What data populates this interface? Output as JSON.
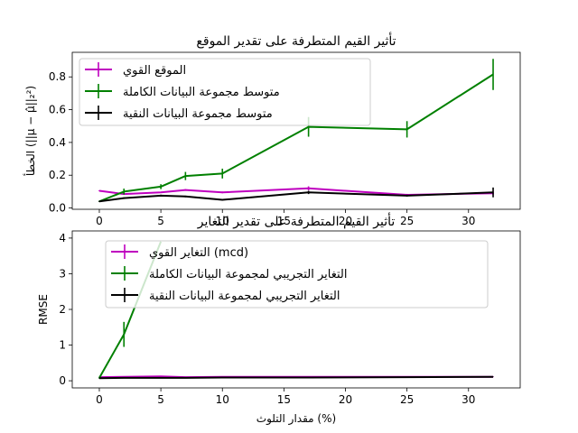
{
  "chart_data": [
    {
      "type": "line",
      "title": "تأثير القيم المتطرفة على تقدير الموقع",
      "xlabel": "",
      "ylabel": "الخطأ (||μ − μ̂||₂²)",
      "x": [
        0,
        2,
        5,
        7,
        10,
        17,
        25,
        32
      ],
      "xlim": [
        -2.2,
        34.2
      ],
      "ylim": [
        -0.008,
        0.95
      ],
      "xticks": [
        0,
        5,
        10,
        15,
        20,
        25,
        30
      ],
      "yticks": [
        0.0,
        0.2,
        0.4,
        0.6,
        0.8
      ],
      "ytick_decimals": 1,
      "grid": false,
      "legend_position": "top-left",
      "series": [
        {
          "name": "الموقع القوي",
          "color": "#bf00bf",
          "values": [
            0.105,
            0.085,
            0.095,
            0.11,
            0.095,
            0.12,
            0.08,
            0.09
          ],
          "errors": [
            0.003,
            0.004,
            0.004,
            0.005,
            0.005,
            0.012,
            0.006,
            0.008
          ]
        },
        {
          "name": "متوسط مجموعة البيانات الكاملة",
          "color": "#008000",
          "values": [
            0.04,
            0.1,
            0.13,
            0.195,
            0.21,
            0.495,
            0.48,
            0.815
          ],
          "errors": [
            0.004,
            0.018,
            0.015,
            0.025,
            0.03,
            0.06,
            0.05,
            0.095
          ]
        },
        {
          "name": "متوسط مجموعة البيانات النقية",
          "color": "#000000",
          "values": [
            0.04,
            0.06,
            0.075,
            0.07,
            0.05,
            0.095,
            0.075,
            0.095
          ],
          "errors": [
            0.003,
            0.005,
            0.006,
            0.005,
            0.004,
            0.01,
            0.006,
            0.03
          ]
        }
      ]
    },
    {
      "type": "line",
      "title": "تأثير القيم المتطرفة على تقدير التغاير",
      "xlabel": "مقدار التلوث (%)",
      "ylabel": "RMSE",
      "x": [
        0,
        2,
        5,
        7,
        10,
        17,
        25,
        32
      ],
      "xlim": [
        -2.2,
        34.2
      ],
      "ylim": [
        -0.2,
        4.2
      ],
      "xticks": [
        0,
        5,
        10,
        15,
        20,
        25,
        30
      ],
      "yticks": [
        0,
        1,
        2,
        3,
        4
      ],
      "ytick_decimals": 0,
      "grid": false,
      "legend_position": "top-left",
      "series": [
        {
          "name": "التغاير القوي (mcd)",
          "color": "#bf00bf",
          "values": [
            0.1,
            0.11,
            0.12,
            0.1,
            0.11,
            0.11,
            0.11,
            0.11
          ],
          "errors": [
            0.01,
            0.01,
            0.01,
            0.01,
            0.01,
            0.01,
            0.01,
            0.01
          ]
        },
        {
          "name": "التغاير التجريبي لمجموعة البيانات الكاملة",
          "color": "#008000",
          "values": [
            0.08,
            1.3,
            3.9,
            null,
            null,
            null,
            null,
            null
          ],
          "errors": [
            0.02,
            0.35,
            0,
            0,
            0,
            0,
            0,
            0
          ]
        },
        {
          "name": "التغاير التجريبي لمجموعة البيانات النقية",
          "color": "#000000",
          "values": [
            0.07,
            0.08,
            0.08,
            0.08,
            0.09,
            0.09,
            0.1,
            0.11
          ],
          "errors": [
            0.005,
            0.005,
            0.005,
            0.005,
            0.005,
            0.005,
            0.005,
            0.005
          ]
        }
      ]
    }
  ]
}
